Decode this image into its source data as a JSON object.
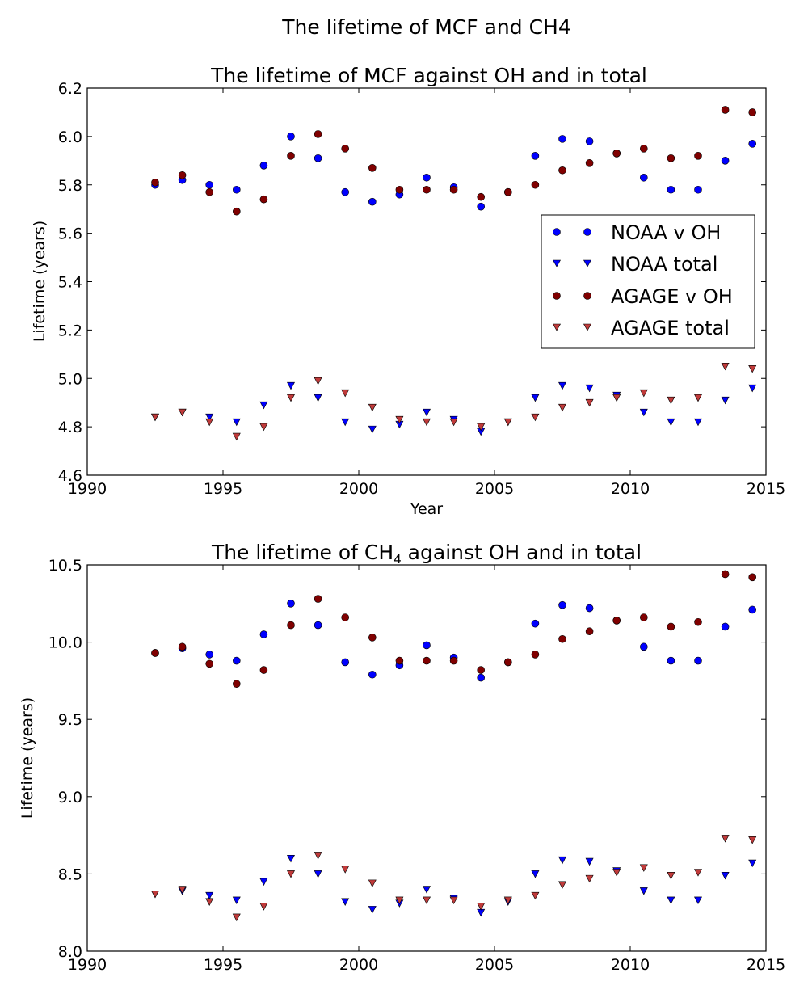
{
  "figure": {
    "suptitle": "The lifetime of MCF and CH4"
  },
  "colors": {
    "noaa": "#0000ff",
    "agage": "#800000",
    "agage_total": "#c03a3a"
  },
  "legend": {
    "placement": "center-right of top panel",
    "entries": [
      {
        "label": "NOAA v OH",
        "series": "noaa_oh",
        "marker": "circle"
      },
      {
        "label": "NOAA total",
        "series": "noaa_total",
        "marker": "triangle-down"
      },
      {
        "label": "AGAGE v OH",
        "series": "agage_oh",
        "marker": "circle"
      },
      {
        "label": "AGAGE total",
        "series": "agage_total",
        "marker": "triangle-down"
      }
    ]
  },
  "chart_data": [
    {
      "type": "scatter",
      "title": "The lifetime of MCF against OH and in total",
      "xlabel": "Year",
      "ylabel": "Lifetime (years)",
      "xlim": [
        1990,
        2015
      ],
      "ylim": [
        4.6,
        6.2
      ],
      "xticks": [
        "1990",
        "1995",
        "2000",
        "2005",
        "2010",
        "2015"
      ],
      "yticks": [
        "4.6",
        "4.8",
        "5.0",
        "5.2",
        "5.4",
        "5.6",
        "5.8",
        "6.0",
        "6.2"
      ],
      "x": [
        1992.5,
        1993.5,
        1994.5,
        1995.5,
        1996.5,
        1997.5,
        1998.5,
        1999.5,
        2000.5,
        2001.5,
        2002.5,
        2003.5,
        2004.5,
        2005.5,
        2006.5,
        2007.5,
        2008.5,
        2009.5,
        2010.5,
        2011.5,
        2012.5,
        2013.5,
        2014.5
      ],
      "series": [
        {
          "key": "noaa_oh",
          "name": "NOAA v OH",
          "marker": "circle",
          "color": "#0000ff",
          "values": [
            5.8,
            5.82,
            5.8,
            5.78,
            5.88,
            6.0,
            5.91,
            5.77,
            5.73,
            5.76,
            5.83,
            5.79,
            5.71,
            5.77,
            5.92,
            5.99,
            5.98,
            5.93,
            5.83,
            5.78,
            5.78,
            5.9,
            5.97
          ]
        },
        {
          "key": "noaa_total",
          "name": "NOAA total",
          "marker": "triangle-down",
          "color": "#0000ff",
          "values": [
            4.84,
            4.86,
            4.84,
            4.82,
            4.89,
            4.97,
            4.92,
            4.82,
            4.79,
            4.81,
            4.86,
            4.83,
            4.78,
            4.82,
            4.92,
            4.97,
            4.96,
            4.93,
            4.86,
            4.82,
            4.82,
            4.91,
            4.96
          ]
        },
        {
          "key": "agage_oh",
          "name": "AGAGE v OH",
          "marker": "circle",
          "color": "#800000",
          "values": [
            5.81,
            5.84,
            5.77,
            5.69,
            5.74,
            5.92,
            6.01,
            5.95,
            5.87,
            5.78,
            5.78,
            5.78,
            5.75,
            5.77,
            5.8,
            5.86,
            5.89,
            5.93,
            5.95,
            5.91,
            5.92,
            6.11,
            6.1
          ]
        },
        {
          "key": "agage_total",
          "name": "AGAGE total",
          "marker": "triangle-down",
          "color": "#c03a3a",
          "values": [
            4.84,
            4.86,
            4.82,
            4.76,
            4.8,
            4.92,
            4.99,
            4.94,
            4.88,
            4.83,
            4.82,
            4.82,
            4.8,
            4.82,
            4.84,
            4.88,
            4.9,
            4.92,
            4.94,
            4.91,
            4.92,
            5.05,
            5.04
          ]
        }
      ]
    },
    {
      "type": "scatter",
      "title": "The lifetime of CH",
      "title_sub": "4",
      "title_rest": " against OH and in total",
      "xlabel": "",
      "ylabel": "Lifetime (years)",
      "xlim": [
        1990,
        2015
      ],
      "ylim": [
        8.0,
        10.5
      ],
      "xticks": [
        "1990",
        "1995",
        "2000",
        "2005",
        "2010",
        "2015"
      ],
      "yticks": [
        "8.0",
        "8.5",
        "9.0",
        "9.5",
        "10.0",
        "10.5"
      ],
      "x": [
        1992.5,
        1993.5,
        1994.5,
        1995.5,
        1996.5,
        1997.5,
        1998.5,
        1999.5,
        2000.5,
        2001.5,
        2002.5,
        2003.5,
        2004.5,
        2005.5,
        2006.5,
        2007.5,
        2008.5,
        2009.5,
        2010.5,
        2011.5,
        2012.5,
        2013.5,
        2014.5
      ],
      "series": [
        {
          "key": "noaa_oh",
          "name": "NOAA v OH",
          "marker": "circle",
          "color": "#0000ff",
          "values": [
            9.93,
            9.96,
            9.92,
            9.88,
            10.05,
            10.25,
            10.11,
            9.87,
            9.79,
            9.85,
            9.98,
            9.9,
            9.77,
            9.87,
            10.12,
            10.24,
            10.22,
            10.14,
            9.97,
            9.88,
            9.88,
            10.1,
            10.21
          ]
        },
        {
          "key": "noaa_total",
          "name": "NOAA total",
          "marker": "triangle-down",
          "color": "#0000ff",
          "values": [
            8.37,
            8.39,
            8.36,
            8.33,
            8.45,
            8.6,
            8.5,
            8.32,
            8.27,
            8.31,
            8.4,
            8.34,
            8.25,
            8.32,
            8.5,
            8.59,
            8.58,
            8.52,
            8.39,
            8.33,
            8.33,
            8.49,
            8.57
          ]
        },
        {
          "key": "agage_oh",
          "name": "AGAGE v OH",
          "marker": "circle",
          "color": "#800000",
          "values": [
            9.93,
            9.97,
            9.86,
            9.73,
            9.82,
            10.11,
            10.28,
            10.16,
            10.03,
            9.88,
            9.88,
            9.88,
            9.82,
            9.87,
            9.92,
            10.02,
            10.07,
            10.14,
            10.16,
            10.1,
            10.13,
            10.44,
            10.42
          ]
        },
        {
          "key": "agage_total",
          "name": "AGAGE total",
          "marker": "triangle-down",
          "color": "#c03a3a",
          "values": [
            8.37,
            8.4,
            8.32,
            8.22,
            8.29,
            8.5,
            8.62,
            8.53,
            8.44,
            8.33,
            8.33,
            8.33,
            8.29,
            8.33,
            8.36,
            8.43,
            8.47,
            8.51,
            8.54,
            8.49,
            8.51,
            8.73,
            8.72
          ]
        }
      ]
    }
  ]
}
